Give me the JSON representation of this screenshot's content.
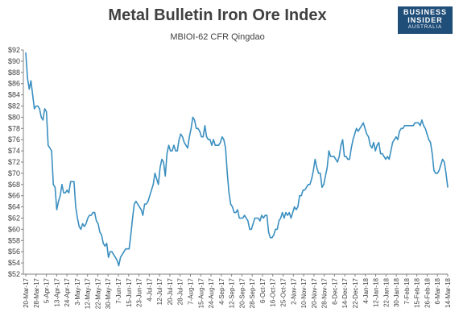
{
  "chart_data": {
    "type": "line",
    "title": "Metal Bulletin Iron Ore Index",
    "subtitle": "MBIOI-62 CFR Qingdao",
    "xlabel": "",
    "ylabel": "",
    "ylim": [
      52,
      92
    ],
    "yticks": [
      "$52",
      "$54",
      "$56",
      "$58",
      "$60",
      "$62",
      "$64",
      "$66",
      "$68",
      "$70",
      "$72",
      "$74",
      "$76",
      "$78",
      "$80",
      "$82",
      "$84",
      "$86",
      "$88",
      "$90",
      "$92"
    ],
    "xticks": [
      "20-Mar-17",
      "28-Mar-17",
      "5-Apr-17",
      "13-Apr-17",
      "24-Apr-17",
      "3-May-17",
      "12-May-17",
      "22-May-17",
      "30-May-17",
      "7-Jun-17",
      "15-Jun-17",
      "23-Jun-17",
      "4-Jul-17",
      "12-Jul-17",
      "20-Jul-17",
      "28-Jul-17",
      "7-Aug-17",
      "15-Aug-17",
      "24-Aug-17",
      "4-Sep-17",
      "12-Sep-17",
      "20-Sep-17",
      "28-Sep-17",
      "6-Oct-17",
      "16-Oct-17",
      "25-Oct-17",
      "2-Nov-17",
      "10-Nov-17",
      "20-Nov-17",
      "28-Nov-17",
      "6-Dec-17",
      "14-Dec-17",
      "22-Dec-17",
      "4-Jan-18",
      "12-Jan-18",
      "22-Jan-18",
      "30-Jan-18",
      "7-Feb-18",
      "15-Feb-18",
      "26-Feb-18",
      "6-Mar-18",
      "14-Mar-18"
    ],
    "grid": false,
    "legend": "none",
    "series": [
      {
        "color": "#3a8fc0",
        "values": [
          91.5,
          87,
          85,
          86.5,
          84,
          81.5,
          82,
          82,
          81.5,
          80,
          79.5,
          81.5,
          81,
          75,
          74.5,
          74,
          68,
          67.5,
          63.5,
          65,
          66,
          68,
          66.5,
          66.5,
          67,
          66.5,
          68.5,
          68.5,
          68.5,
          64,
          62,
          60.5,
          60,
          61,
          60.5,
          61,
          62,
          62.5,
          62.5,
          63,
          63,
          61.5,
          61,
          59.5,
          59,
          57.5,
          57,
          57.5,
          55,
          56,
          56,
          55.5,
          55,
          54.5,
          53.5,
          55,
          55.5,
          56,
          56.5,
          56.5,
          56.5,
          59,
          62,
          64.5,
          65,
          64.5,
          64,
          63.5,
          62.5,
          64.5,
          64.5,
          65,
          66,
          67,
          68,
          70,
          69,
          68,
          71,
          72.5,
          72,
          69.5,
          73.5,
          75,
          74,
          74,
          75,
          74,
          74,
          76,
          77,
          76.5,
          75.5,
          75,
          74.5,
          76.5,
          78,
          80,
          79.5,
          78,
          78,
          77.5,
          76.5,
          76.5,
          78.5,
          76.5,
          76,
          76,
          75,
          76,
          75,
          75,
          75,
          75.5,
          76.5,
          76,
          74.5,
          70,
          66.5,
          64.5,
          64,
          63,
          63,
          63.5,
          62,
          62,
          62,
          62.5,
          62,
          61.5,
          60,
          60,
          61,
          62,
          62,
          62,
          61.5,
          62.5,
          62,
          62.5,
          62.5,
          59.5,
          58.5,
          58.5,
          59,
          60,
          60,
          61.5,
          62,
          63,
          62,
          63,
          62.5,
          63,
          62,
          63,
          64,
          63.5,
          64,
          66,
          66,
          67,
          67,
          67.5,
          68,
          68,
          69,
          70.5,
          72.5,
          71,
          70,
          70,
          67.5,
          68,
          69.5,
          71,
          74,
          73,
          73,
          73,
          72.5,
          72,
          73,
          75,
          76,
          73,
          73,
          72.5,
          72.5,
          74.5,
          76,
          77,
          78,
          77.5,
          78,
          78.5,
          79,
          78,
          77,
          76.5,
          75,
          74.5,
          75.5,
          74,
          75,
          75.5,
          73.5,
          73.5,
          73,
          72.5,
          73,
          72.5,
          74,
          75.5,
          76,
          76.5,
          76,
          77.5,
          78,
          78,
          78.5,
          78.5,
          78.5,
          78.5,
          78.5,
          78.5,
          79,
          79,
          79,
          78.5,
          79.5,
          78.5,
          78,
          77,
          76,
          75.5,
          73.5,
          70.5,
          70,
          70,
          70.5,
          71.5,
          72.5,
          72,
          70,
          67.5
        ]
      }
    ]
  },
  "logo": {
    "line1": "BUSINESS",
    "line2": "INSIDER",
    "line3": "AUSTRALIA"
  }
}
